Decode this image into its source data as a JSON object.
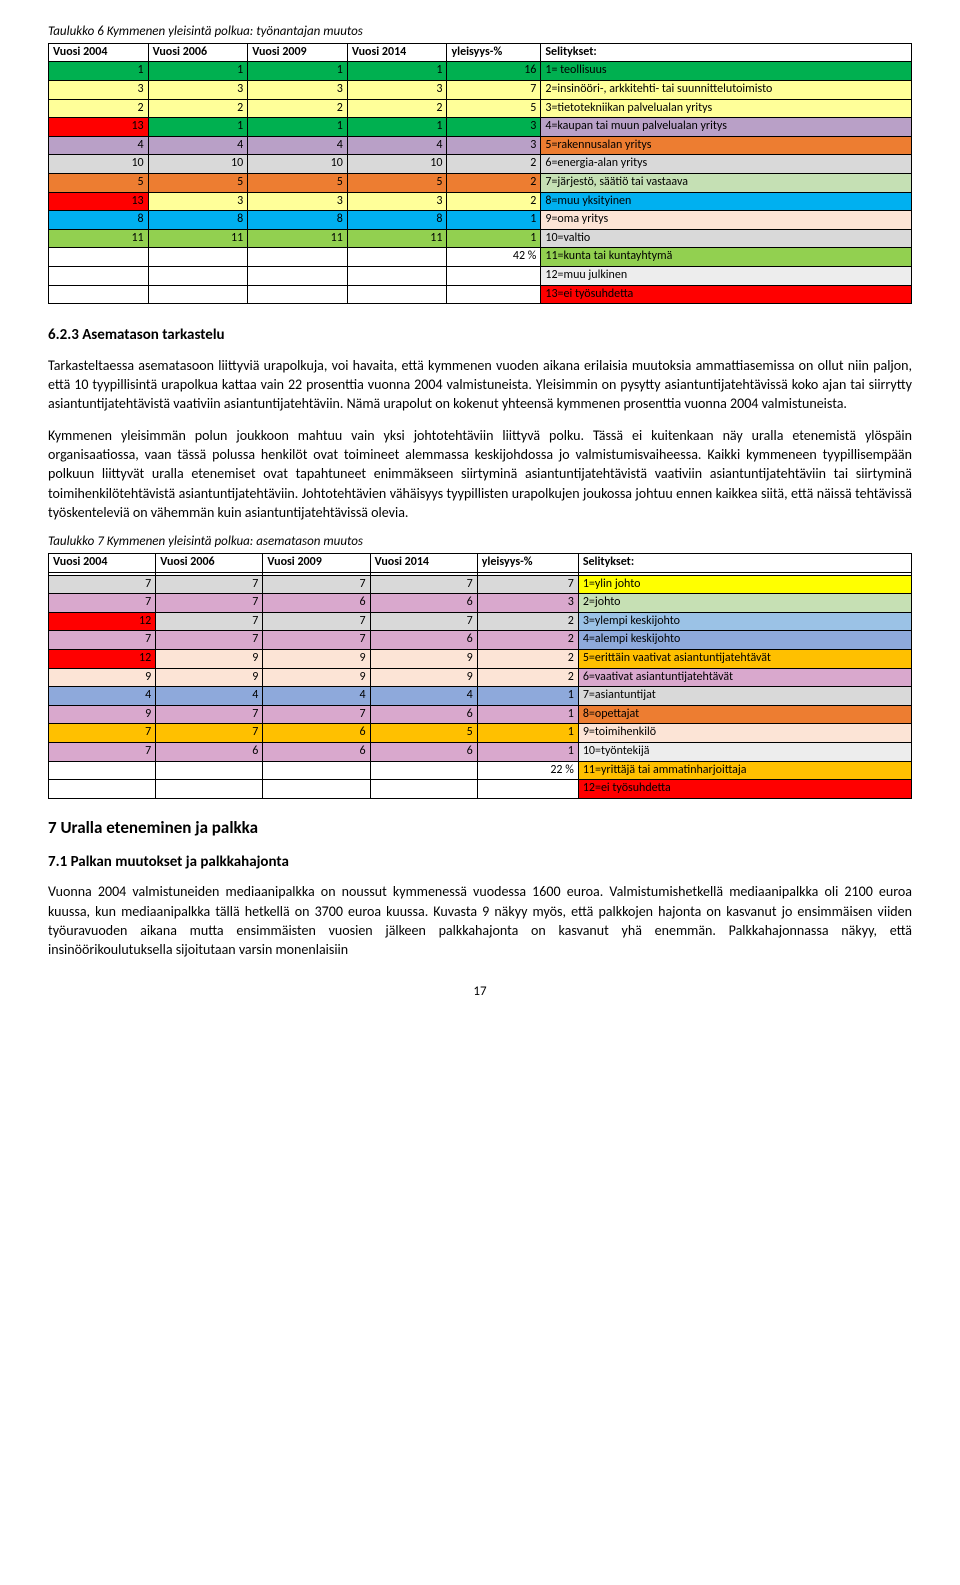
{
  "table6": {
    "title": "Taulukko 6 Kymmenen yleisintä polkua: työnantajan muutos",
    "headers": [
      "Vuosi 2004",
      "Vuosi 2006",
      "Vuosi 2009",
      "Vuosi 2014",
      "yleisyys-%",
      "Selitykset:"
    ],
    "rows": [
      {
        "cells": [
          "1",
          "1",
          "1",
          "1",
          "16"
        ],
        "data_bg": "#00b050",
        "legend": "1= teollisuus",
        "legend_bg": "#00b050"
      },
      {
        "cells": [
          "3",
          "3",
          "3",
          "3",
          "7"
        ],
        "data_bg": "#ffff99",
        "legend": "2=insinööri-, arkkitehti- tai suunnittelutoimisto",
        "legend_bg": "#ffff99"
      },
      {
        "cells": [
          "2",
          "2",
          "2",
          "2",
          "5"
        ],
        "data_bg": "#ffff99",
        "legend": "3=tietotekniikan palvelualan yritys",
        "legend_bg": "#ffff99"
      },
      {
        "cells": [
          "13",
          "1",
          "1",
          "1",
          "3"
        ],
        "data_bg": "#00b050",
        "cell0_bg": "#ff0000",
        "legend": "4=kaupan tai muun palvelualan yritys",
        "legend_bg": "#b9a0c7"
      },
      {
        "cells": [
          "4",
          "4",
          "4",
          "4",
          "3"
        ],
        "data_bg": "#b9a0c7",
        "legend": "5=rakennusalan yritys",
        "legend_bg": "#ed7d31"
      },
      {
        "cells": [
          "10",
          "10",
          "10",
          "10",
          "2"
        ],
        "data_bg": "#d9d9d9",
        "legend": "6=energia-alan yritys",
        "legend_bg": "#d9d9d9"
      },
      {
        "cells": [
          "5",
          "5",
          "5",
          "5",
          "2"
        ],
        "data_bg": "#ed7d31",
        "legend": "7=järjestö, säätiö tai vastaava",
        "legend_bg": "#c5e0b4"
      },
      {
        "cells": [
          "13",
          "3",
          "3",
          "3",
          "2"
        ],
        "data_bg": "#ffff99",
        "cell0_bg": "#ff0000",
        "legend": "8=muu yksityinen",
        "legend_bg": "#00b0f0"
      },
      {
        "cells": [
          "8",
          "8",
          "8",
          "8",
          "1"
        ],
        "data_bg": "#00b0f0",
        "legend": "9=oma yritys",
        "legend_bg": "#fce4d6"
      },
      {
        "cells": [
          "11",
          "11",
          "11",
          "11",
          "1"
        ],
        "data_bg": "#92d050",
        "legend": "10=valtio",
        "legend_bg": "#d9d9d9"
      },
      {
        "cells": [
          "",
          "",
          "",
          "",
          "42 %"
        ],
        "data_bg": "#ffffff",
        "legend": "11=kunta tai kuntayhtymä",
        "legend_bg": "#92d050"
      },
      {
        "cells": [
          "",
          "",
          "",
          "",
          ""
        ],
        "data_bg": "#ffffff",
        "legend": "12=muu julkinen",
        "legend_bg": "#ededed"
      },
      {
        "cells": [
          "",
          "",
          "",
          "",
          ""
        ],
        "data_bg": "#ffffff",
        "legend": "13=ei työsuhdetta",
        "legend_bg": "#ff0000"
      }
    ]
  },
  "section623": {
    "heading": "6.2.3     Asematason tarkastelu",
    "para1": "Tarkasteltaessa asematasoon liittyviä urapolkuja, voi havaita, että kymmenen vuoden aikana erilaisia muutoksia ammattiasemissa on ollut niin paljon, että 10 tyypillisintä urapolkua kattaa vain 22 prosenttia vuonna 2004 valmistuneista. Yleisimmin on pysytty asiantuntijatehtävissä koko ajan tai siirrytty asiantuntijatehtävistä vaativiin asiantuntijatehtäviin. Nämä urapolut on kokenut yhteensä kymmenen prosenttia vuonna 2004 valmistuneista.",
    "para2": "Kymmenen yleisimmän polun joukkoon mahtuu vain yksi johtotehtäviin liittyvä polku. Tässä ei kuitenkaan näy uralla etenemistä ylöspäin organisaatiossa, vaan tässä polussa henkilöt ovat toimineet alemmassa keskijohdossa jo valmistumisvaiheessa. Kaikki kymmeneen tyypillisempään polkuun liittyvät uralla etenemiset ovat tapahtuneet enimmäkseen siirtyminä asiantuntijatehtävistä vaativiin asiantuntijatehtäviin tai siirtyminä toimihenkilötehtävistä asiantuntijatehtäviin. Johtotehtävien vähäisyys tyypillisten urapolkujen joukossa johtuu ennen kaikkea siitä, että näissä tehtävissä työskenteleviä on vähemmän kuin asiantuntijatehtävissä olevia."
  },
  "table7": {
    "title": "Taulukko 7 Kymmenen yleisintä polkua: asematason muutos",
    "headers": [
      "Vuosi 2004",
      "Vuosi 2006",
      "Vuosi 2009",
      "Vuosi 2014",
      "yleisyys-%",
      "Selitykset:"
    ],
    "rows": [
      {
        "cells": [
          "",
          "",
          "",
          "",
          ""
        ],
        "data_bg": "#ffffff",
        "legend": "",
        "legend_bg": "#ffffff"
      },
      {
        "cells": [
          "7",
          "7",
          "7",
          "7",
          "7"
        ],
        "data_bg": "#d9d9d9",
        "legend": "1=ylin johto",
        "legend_bg": "#ffff00"
      },
      {
        "cells": [
          "7",
          "7",
          "6",
          "6",
          "3"
        ],
        "data_bg": "#d9a8cd",
        "legend": "2=johto",
        "legend_bg": "#c6e0b4"
      },
      {
        "cells": [
          "12",
          "7",
          "7",
          "7",
          "2"
        ],
        "data_bg": "#d9d9d9",
        "cell0_bg": "#ff0000",
        "legend": "3=ylempi keskijohto",
        "legend_bg": "#9bc2e6"
      },
      {
        "cells": [
          "7",
          "7",
          "7",
          "6",
          "2"
        ],
        "data_bg": "#d9a8cd",
        "legend": "4=alempi keskijohto",
        "legend_bg": "#8ea9db"
      },
      {
        "cells": [
          "12",
          "9",
          "9",
          "9",
          "2"
        ],
        "data_bg": "#fce4d6",
        "cell0_bg": "#ff0000",
        "legend": "5=erittäin vaativat asiantuntijatehtävät",
        "legend_bg": "#ffc000"
      },
      {
        "cells": [
          "9",
          "9",
          "9",
          "9",
          "2"
        ],
        "data_bg": "#fce4d6",
        "legend": "6=vaativat asiantuntijatehtävät",
        "legend_bg": "#d9a8cd"
      },
      {
        "cells": [
          "4",
          "4",
          "4",
          "4",
          "1"
        ],
        "data_bg": "#8ea9db",
        "legend": "7=asiantuntijat",
        "legend_bg": "#d9d9d9"
      },
      {
        "cells": [
          "9",
          "7",
          "7",
          "6",
          "1"
        ],
        "data_bg": "#d9a8cd",
        "legend": "8=opettajat",
        "legend_bg": "#ed7d31"
      },
      {
        "cells": [
          "7",
          "7",
          "6",
          "5",
          "1"
        ],
        "data_bg": "#ffc000",
        "legend": "9=toimihenkilö",
        "legend_bg": "#fce4d6"
      },
      {
        "cells": [
          "7",
          "6",
          "6",
          "6",
          "1"
        ],
        "data_bg": "#d9a8cd",
        "legend": "10=työntekijä",
        "legend_bg": "#ededed"
      },
      {
        "cells": [
          "",
          "",
          "",
          "",
          "22 %"
        ],
        "data_bg": "#ffffff",
        "legend": "11=yrittäjä tai ammatinharjoittaja",
        "legend_bg": "#ffc000"
      },
      {
        "cells": [
          "",
          "",
          "",
          "",
          ""
        ],
        "data_bg": "#ffffff",
        "legend": "12=ei työsuhdetta",
        "legend_bg": "#ff0000"
      }
    ]
  },
  "section7": {
    "heading": "7     Uralla eteneminen ja palkka",
    "sub": "7.1     Palkan muutokset ja palkkahajonta",
    "para": "Vuonna 2004 valmistuneiden mediaanipalkka on noussut kymmenessä vuodessa 1600 euroa. Valmistumishetkellä mediaanipalkka oli 2100 euroa kuussa, kun mediaanipalkka tällä hetkellä on 3700 euroa kuussa. Kuvasta 9 näkyy myös, että palkkojen hajonta on kasvanut jo ensimmäisen viiden työuravuoden aikana mutta ensimmäisten vuosien jälkeen palkkahajonta on kasvanut yhä enemmän. Palkkahajonnassa näkyy, että insinöörikoulutuksella sijoitutaan varsin monenlaisiin"
  },
  "pageNumber": "17"
}
